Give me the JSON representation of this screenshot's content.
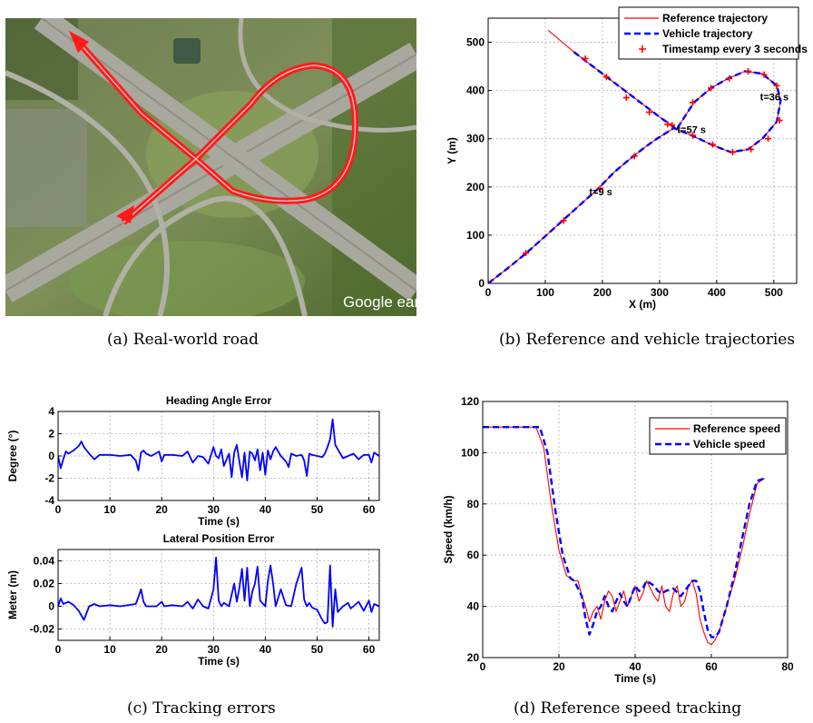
{
  "captions": {
    "a": "(a) Real-world road",
    "b": "(b) Reference and vehicle trajectories",
    "c": "(c) Tracking errors",
    "d": "(d) Reference speed tracking"
  },
  "photo": {
    "watermark": "Google earth",
    "colors": {
      "road_line": "#ff1a1a",
      "grass": "#5f7f3a",
      "asphalt": "#9a9a92"
    }
  },
  "chart_data": [
    {
      "id": "trajectory",
      "type": "line",
      "xlabel": "X (m)",
      "ylabel": "Y (m)",
      "xlim": [
        0,
        540
      ],
      "ylim": [
        0,
        550
      ],
      "xticks": [
        0,
        100,
        200,
        300,
        400,
        500
      ],
      "yticks": [
        0,
        100,
        200,
        300,
        400,
        500
      ],
      "grid": true,
      "legend_position": "top-right",
      "series": [
        {
          "name": "Reference trajectory",
          "style": "solid",
          "color": "#ff0000",
          "x": [
            105,
            150,
            200,
            250,
            300,
            330,
            360,
            390,
            420,
            450,
            480,
            505,
            512,
            505,
            480,
            455,
            425,
            392,
            360,
            325,
            290,
            255,
            220,
            193,
            160,
            130,
            100,
            68,
            35,
            0
          ],
          "y": [
            525,
            480,
            435,
            390,
            345,
            320,
            375,
            405,
            425,
            440,
            435,
            410,
            380,
            335,
            300,
            278,
            272,
            287,
            305,
            322,
            296,
            265,
            230,
            197,
            162,
            130,
            98,
            64,
            32,
            0
          ]
        },
        {
          "name": "Vehicle trajectory",
          "style": "dashed",
          "color": "#0000ff",
          "x": [
            150,
            200,
            250,
            300,
            330,
            360,
            390,
            420,
            450,
            480,
            505,
            512,
            505,
            480,
            455,
            425,
            392,
            360,
            325,
            290,
            255,
            220,
            193,
            160,
            130,
            100,
            68,
            35,
            0
          ],
          "y": [
            480,
            435,
            390,
            345,
            320,
            375,
            405,
            425,
            440,
            435,
            410,
            380,
            335,
            300,
            278,
            272,
            287,
            305,
            322,
            296,
            265,
            230,
            197,
            162,
            130,
            98,
            64,
            32,
            0
          ]
        },
        {
          "name": "Timestamp every 3 seconds",
          "style": "marker",
          "color": "#ff0000",
          "x": [
            0,
            66,
            132,
            196,
            256,
            314,
            358,
            390,
            422,
            455,
            483,
            505,
            510,
            490,
            460,
            428,
            393,
            358,
            322,
            282,
            242,
            207,
            170
          ],
          "y": [
            0,
            63,
            130,
            197,
            264,
            330,
            375,
            405,
            425,
            440,
            433,
            410,
            338,
            300,
            278,
            272,
            288,
            307,
            328,
            355,
            385,
            428,
            466
          ]
        }
      ],
      "annotations": [
        {
          "text": "t=36 s",
          "x": 495,
          "y": 387
        },
        {
          "text": "t=57 s",
          "x": 350,
          "y": 319
        },
        {
          "text": "t=9 s",
          "x": 196,
          "y": 190
        }
      ]
    },
    {
      "id": "heading",
      "type": "line",
      "title": "Heading Angle Error",
      "xlabel": "Time (s)",
      "ylabel": "Degree (°)",
      "xlim": [
        0,
        62
      ],
      "ylim": [
        -4,
        4
      ],
      "xticks": [
        0,
        10,
        20,
        30,
        40,
        50,
        60
      ],
      "yticks": [
        -4,
        -2,
        0,
        2,
        4
      ],
      "grid": true,
      "series": [
        {
          "name": "",
          "color": "#0000ff",
          "x": [
            0,
            0.5,
            1,
            1.5,
            2,
            3,
            4,
            4.5,
            5,
            6,
            7,
            8,
            10,
            12,
            14,
            15,
            15.5,
            16,
            16.5,
            17,
            18,
            19.5,
            20,
            20.5,
            22,
            24,
            25,
            26,
            27,
            28,
            29,
            30,
            30.5,
            31,
            31.5,
            32,
            33,
            33.5,
            34,
            34.5,
            35,
            35.5,
            36,
            36.5,
            37,
            37.5,
            38,
            38.5,
            39,
            39.5,
            40,
            40.5,
            41,
            41.5,
            42,
            43,
            44,
            44.5,
            45,
            46,
            47,
            47.5,
            48,
            48.5,
            49,
            50,
            51,
            51.5,
            52,
            52.5,
            53,
            53.5,
            54,
            55,
            56,
            57,
            58,
            59,
            60,
            60.5,
            61,
            62
          ],
          "y": [
            0,
            -1.1,
            -0.3,
            0.4,
            0.2,
            0.5,
            0.9,
            1.3,
            0.8,
            0.2,
            -0.3,
            0.1,
            0.1,
            0,
            0.1,
            -0.4,
            -1.3,
            0.3,
            0.5,
            0.2,
            0,
            0.4,
            -0.5,
            0.1,
            0.1,
            0,
            0.4,
            -0.6,
            0,
            -0.1,
            -0.7,
            0.8,
            0,
            -0.2,
            0.6,
            -0.9,
            0.2,
            -1.9,
            0.3,
            1.0,
            -0.5,
            -1.9,
            0.3,
            -2.2,
            0.4,
            0.2,
            -0.4,
            0.6,
            -1.3,
            0.3,
            -1.7,
            0.5,
            -0.3,
            0.4,
            0.8,
            0,
            -0.5,
            -1.0,
            0.2,
            0,
            0.1,
            -0.4,
            -1.8,
            0.2,
            0.1,
            0,
            -0.1,
            0.2,
            0.8,
            1.5,
            3.3,
            1.0,
            0.6,
            -0.2,
            0,
            0.2,
            -0.3,
            0.1,
            0.1,
            -0.6,
            0.3,
            0
          ]
        }
      ]
    },
    {
      "id": "lateral",
      "type": "line",
      "title": "Lateral Position Error",
      "xlabel": "Time (s)",
      "ylabel": "Meter (m)",
      "xlim": [
        0,
        62
      ],
      "ylim": [
        -0.03,
        0.05
      ],
      "xticks": [
        0,
        10,
        20,
        30,
        40,
        50,
        60
      ],
      "yticks": [
        -0.02,
        0,
        0.02,
        0.04
      ],
      "grid": true,
      "series": [
        {
          "name": "",
          "color": "#0000ff",
          "x": [
            0,
            0.5,
            1,
            2,
            3,
            4,
            5,
            6,
            7,
            8,
            10,
            12,
            15,
            15.5,
            16,
            16.5,
            17,
            19,
            20,
            20.5,
            22,
            24,
            25,
            26,
            27,
            28,
            29,
            30,
            30.5,
            31,
            31.5,
            32,
            33,
            34,
            34.5,
            35,
            35.5,
            36,
            36.5,
            37,
            37.5,
            38,
            38.5,
            39,
            40,
            40.5,
            41,
            41.5,
            42,
            43,
            44,
            45,
            46,
            47,
            47.5,
            48,
            48.5,
            49,
            50,
            51,
            51.5,
            52,
            52.5,
            53,
            53.5,
            54,
            55,
            56,
            56.5,
            57,
            58,
            59,
            60,
            60.5,
            61,
            62
          ],
          "y": [
            0,
            0.007,
            0.002,
            0.004,
            0.001,
            -0.004,
            -0.012,
            0,
            0.002,
            0,
            0.001,
            0,
            0.002,
            0.008,
            0.015,
            0.004,
            0,
            0,
            0.004,
            0,
            0.001,
            0,
            0.004,
            -0.002,
            0.006,
            0,
            -0.002,
            0.015,
            0.043,
            0.005,
            0,
            0.003,
            0,
            0.02,
            0.004,
            0.016,
            0.033,
            0.005,
            0.034,
            0,
            0.013,
            0.02,
            0.035,
            0.005,
            0,
            0.022,
            0.036,
            0.02,
            0,
            0.015,
            0.001,
            0,
            0.02,
            0.034,
            0.006,
            0,
            0.003,
            -0.001,
            -0.003,
            -0.012,
            -0.015,
            -0.014,
            0.036,
            -0.018,
            0.015,
            -0.005,
            0,
            0.003,
            -0.002,
            0,
            0.004,
            -0.004,
            0.005,
            -0.005,
            0.002,
            0
          ]
        }
      ]
    },
    {
      "id": "speed",
      "type": "line",
      "xlabel": "Time (s)",
      "ylabel": "Speed (km/h)",
      "xlim": [
        0,
        80
      ],
      "ylim": [
        20,
        120
      ],
      "xticks": [
        0,
        20,
        40,
        60,
        80
      ],
      "yticks": [
        20,
        40,
        60,
        80,
        100,
        120
      ],
      "grid": true,
      "legend_position": "top-right",
      "series": [
        {
          "name": "Reference speed",
          "style": "solid",
          "color": "#ff0000",
          "x": [
            0,
            14,
            16,
            18,
            20,
            22,
            24,
            25,
            26,
            27,
            28,
            29,
            30,
            31,
            32,
            33,
            34,
            35,
            36,
            37,
            38,
            39,
            40,
            41,
            42,
            43,
            44,
            45,
            46,
            47,
            48,
            49,
            50,
            51,
            52,
            53,
            54,
            55,
            56,
            57,
            58,
            59,
            60,
            61,
            62,
            64,
            66,
            68,
            70,
            72,
            74
          ],
          "y": [
            110,
            110,
            102,
            80,
            62,
            52,
            50,
            50,
            44,
            40,
            34,
            38,
            40,
            35,
            42,
            46,
            44,
            38,
            42,
            46,
            40,
            44,
            48,
            42,
            45,
            50,
            47,
            44,
            42,
            48,
            40,
            38,
            45,
            48,
            40,
            42,
            48,
            50,
            45,
            35,
            30,
            26,
            25,
            27,
            30,
            40,
            50,
            62,
            76,
            88,
            90
          ]
        },
        {
          "name": "Vehicle speed",
          "style": "dashed",
          "color": "#0000ff",
          "x": [
            0,
            15,
            17,
            19,
            21,
            23,
            24,
            25,
            26,
            27,
            28,
            29,
            30,
            31,
            32,
            33,
            34,
            35,
            36,
            37,
            38,
            39,
            40,
            41,
            42,
            43,
            44,
            45,
            46,
            47,
            48,
            50,
            52,
            54,
            55,
            56,
            57,
            58,
            59,
            60,
            61,
            62,
            64,
            66,
            68,
            70,
            72,
            74
          ],
          "y": [
            110,
            110,
            100,
            78,
            60,
            51,
            50,
            47,
            44,
            35,
            29,
            33,
            38,
            40,
            44,
            40,
            38,
            42,
            45,
            42,
            40,
            44,
            48,
            46,
            47,
            50,
            49,
            48,
            46,
            45,
            46,
            47,
            44,
            48,
            50,
            50,
            46,
            38,
            31,
            28,
            28,
            30,
            40,
            52,
            66,
            80,
            89,
            90
          ]
        }
      ]
    }
  ]
}
